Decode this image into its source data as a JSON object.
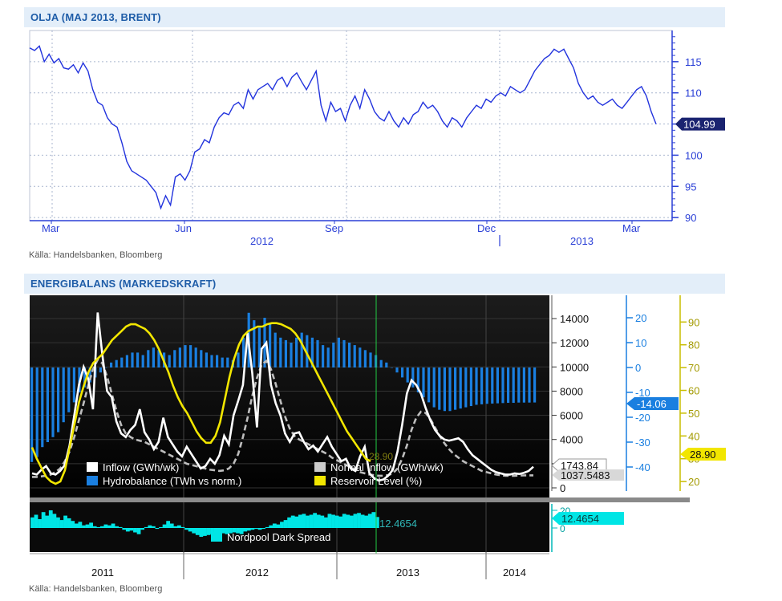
{
  "oil_chart": {
    "header": "OLJA (MAJ 2013, BRENT)",
    "source": "Källa: Handelsbanken, Bloomberg",
    "chart_data": {
      "type": "line",
      "title": "OLJA (MAJ 2013, BRENT)",
      "x_tick_labels": [
        "Mar",
        "Jun",
        "Sep",
        "Dec",
        "Mar"
      ],
      "year_labels": [
        "2012",
        "2013"
      ],
      "y_ticks": [
        90,
        95,
        100,
        105,
        110,
        115
      ],
      "ylim": [
        89.5,
        120
      ],
      "last_value": "104.99",
      "series": [
        {
          "values": [
            117.2,
            116.8,
            117.5,
            115.0,
            116.2,
            114.8,
            115.5,
            114.0,
            113.8,
            114.5,
            113.2,
            114.8,
            113.5,
            110.5,
            108.5,
            108.0,
            106.0,
            105.0,
            104.5,
            102.0,
            99.0,
            97.5,
            97.0,
            96.5,
            96.0,
            95.0,
            94.0,
            91.5,
            93.5,
            92.0,
            96.5,
            97.0,
            96.0,
            97.5,
            100.5,
            101.0,
            102.5,
            102.0,
            104.5,
            106.0,
            106.8,
            106.5,
            108.0,
            108.5,
            107.5,
            110.5,
            109.0,
            110.5,
            111.0,
            111.5,
            110.5,
            112.0,
            112.5,
            111.0,
            112.5,
            113.2,
            111.8,
            110.5,
            112.0,
            113.5,
            108.0,
            105.5,
            108.5,
            107.0,
            107.5,
            105.5,
            108.0,
            109.5,
            107.5,
            110.5,
            109.0,
            107.0,
            106.0,
            105.5,
            107.0,
            105.5,
            104.5,
            106.0,
            105.0,
            106.5,
            107.0,
            108.5,
            107.5,
            108.0,
            107.0,
            105.5,
            104.5,
            106.0,
            105.5,
            104.5,
            106.0,
            107.0,
            108.0,
            107.5,
            109.0,
            108.5,
            109.5,
            110.0,
            109.5,
            111.0,
            110.5,
            110.0,
            110.5,
            112.0,
            113.5,
            114.5,
            115.5,
            116.0,
            117.0,
            116.5,
            117.0,
            115.5,
            114.0,
            111.5,
            110.0,
            109.0,
            109.5,
            108.5,
            108.0,
            108.5,
            109.0,
            108.0,
            107.5,
            108.5,
            109.5,
            110.5,
            111.0,
            109.5,
            107.0,
            104.99
          ]
        }
      ]
    }
  },
  "energy_chart": {
    "header": "ENERGIBALANS (MARKEDSKRAFT)",
    "source": "Källa: Handelsbanken, Bloomberg",
    "chart_data": [
      {
        "type": "line",
        "x_labels": [
          "2011",
          "2012",
          "2013",
          "2014"
        ],
        "left_axis_ticks": [
          0,
          2000,
          4000,
          6000,
          8000,
          10000,
          12000,
          14000
        ],
        "middle_axis_ticks": [
          -40,
          -30,
          -20,
          -10,
          0,
          10,
          20
        ],
        "right_axis_ticks": [
          20,
          30,
          40,
          50,
          60,
          70,
          80,
          90
        ],
        "legend": [
          {
            "label": "Inflow (GWh/wk)",
            "color": "#ffffff"
          },
          {
            "label": "Normal Inflow (GWh/wk)",
            "color": "#cccccc"
          },
          {
            "label": "Hydrobalance (TWh vs norm.)",
            "color": "#1a7fe0"
          },
          {
            "label": "Reservoir Level (%)",
            "color": "#f2e600"
          }
        ],
        "last_values": {
          "inflow": "1743.84",
          "normal_inflow": "1037.5483",
          "hydrobalance": "-14.06",
          "reservoir": "28.90",
          "reservoir_inline": "28.90"
        },
        "series": [
          {
            "name": "Inflow (GWh/wk)",
            "values": [
              1200,
              1100,
              1500,
              1800,
              1200,
              1100,
              1400,
              1900,
              3500,
              6000,
              8500,
              10000,
              9000,
              6500,
              14500,
              11000,
              8000,
              7500,
              5500,
              4500,
              4200,
              4800,
              5200,
              6500,
              4600,
              4000,
              3200,
              3800,
              5800,
              4200,
              3600,
              3000,
              2600,
              3400,
              2800,
              2200,
              1600,
              1800,
              2400,
              2000,
              2700,
              4300,
              3600,
              6000,
              7200,
              8500,
              12800,
              9500,
              5000,
              11500,
              12000,
              8500,
              7000,
              6000,
              4500,
              3800,
              4500,
              4600,
              3800,
              3200,
              3500,
              3000,
              3600,
              4200,
              3400,
              2800,
              2200,
              2400,
              1600,
              1400,
              2600,
              3400,
              1200,
              800,
              600,
              700,
              1000,
              1500,
              3000,
              5200,
              7800,
              8900,
              8500,
              7800,
              6600,
              5600,
              4800,
              4300,
              4000,
              3900,
              4000,
              4100,
              3800,
              3200,
              2700,
              2400,
              2100,
              1800,
              1500,
              1300,
              1200,
              1100,
              1100,
              1200,
              1150,
              1250,
              1400,
              1743.84
            ]
          },
          {
            "name": "Normal Inflow (GWh/wk)",
            "values": [
              900,
              900,
              950,
              1000,
              1100,
              1300,
              1600,
              2200,
              3000,
              4200,
              5600,
              7000,
              8500,
              9800,
              10600,
              10300,
              9200,
              7800,
              6400,
              5200,
              4500,
              4200,
              4000,
              3900,
              3800,
              3600,
              3400,
              3200,
              3000,
              2800,
              2600,
              2400,
              2200,
              2000,
              1900,
              1800,
              1700,
              1600,
              1500,
              1450,
              1400,
              1450,
              1600,
              2000,
              2800,
              4200,
              5800,
              7600,
              9100,
              10200,
              10500,
              9800,
              8600,
              7200,
              5900,
              4900,
              4300,
              4000,
              3800,
              3600,
              3400,
              3200,
              3000,
              2800,
              2500,
              2300,
              2100,
              1900,
              1700,
              1500,
              1300,
              1200,
              1100,
              1050,
              1000,
              1000,
              1050,
              1200,
              1600,
              2400,
              3500,
              4800,
              5800,
              6300,
              6200,
              5700,
              5000,
              4300,
              3700,
              3200,
              2800,
              2500,
              2200,
              2000,
              1800,
              1600,
              1400,
              1300,
              1200,
              1100,
              1050,
              1000,
              1000,
              1000,
              1020,
              1030,
              1035,
              1037.5483
            ]
          },
          {
            "name": "Hydrobalance (TWh vs norm.)",
            "values": [
              -38,
              -36,
              -32,
              -30,
              -28,
              -26,
              -22,
              -18,
              -14,
              -10,
              -8,
              -6,
              -4,
              -2,
              0,
              2,
              3,
              4,
              5,
              6,
              6,
              5,
              7,
              8,
              7,
              6,
              5,
              7,
              8,
              9,
              9,
              8,
              7,
              6,
              5,
              5,
              4,
              4,
              3,
              6,
              12,
              22,
              19,
              16,
              20,
              18,
              14,
              12,
              11,
              10,
              12,
              14,
              13,
              12,
              11,
              9,
              8,
              10,
              12,
              11,
              10,
              9,
              8,
              7,
              6,
              5,
              3,
              2,
              0,
              -2,
              -4,
              -6,
              -8,
              -10,
              -12,
              -14,
              -16,
              -17,
              -17.5,
              -17.5,
              -17,
              -16.5,
              -16,
              -15.5,
              -15,
              -14.8,
              -14.6,
              -14.5,
              -14.4,
              -14.3,
              -14.2,
              -14.2,
              -14.1,
              -14.1,
              -14.1,
              -14.06
            ]
          },
          {
            "name": "Reservoir Level (%)",
            "values": [
              35,
              30,
              26,
              22,
              20,
              19,
              20,
              25,
              35,
              45,
              55,
              62,
              68,
              72,
              74,
              76,
              79,
              82,
              84,
              86,
              88,
              89,
              89,
              88,
              87,
              85,
              82,
              78,
              73,
              68,
              62,
              57,
              53,
              50,
              46,
              42,
              39,
              37,
              37,
              40,
              46,
              56,
              66,
              74,
              80,
              84,
              86,
              87,
              88,
              88,
              89,
              89.5,
              89.5,
              89,
              88,
              87,
              85,
              82,
              78,
              74,
              70,
              66,
              62,
              58,
              54,
              50,
              46,
              42,
              39,
              36,
              33,
              30,
              28.9
            ]
          }
        ]
      },
      {
        "type": "area",
        "legend": [
          {
            "label": "Nordpool Dark Spread",
            "color": "#00e5e5"
          }
        ],
        "axis_ticks": [
          0,
          20
        ],
        "last_value": "12.4654",
        "inline_value": "12.4654",
        "series": [
          {
            "name": "Nordpool Dark Spread",
            "values": [
              12,
              15,
              10,
              18,
              14,
              20,
              16,
              12,
              9,
              14,
              11,
              8,
              5,
              7,
              3,
              4,
              6,
              2,
              1,
              2,
              4,
              3,
              5,
              2,
              1,
              -2,
              -4,
              -3,
              -5,
              -7,
              -2,
              1,
              3,
              2,
              -1,
              1,
              4,
              8,
              5,
              2,
              3,
              1,
              -2,
              -4,
              -6,
              -8,
              -10,
              -9,
              -8,
              -7,
              -6,
              -5,
              -6,
              -7,
              -6,
              -5,
              -6,
              -7,
              -4,
              -3,
              -2,
              -1,
              -2,
              -1,
              1,
              3,
              5,
              4,
              7,
              9,
              12,
              14,
              13,
              15,
              16,
              14,
              15,
              17,
              15,
              14,
              12,
              16,
              15,
              14,
              13,
              16,
              15,
              14,
              16,
              17,
              15,
              14,
              16,
              18,
              12.4654
            ]
          }
        ]
      }
    ]
  }
}
